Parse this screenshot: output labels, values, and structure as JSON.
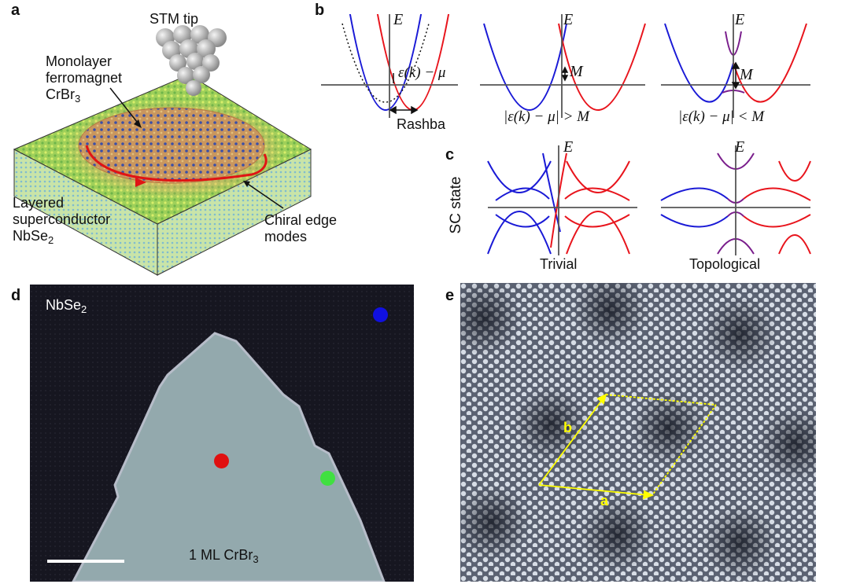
{
  "panels": {
    "a": {
      "letter": "a",
      "stm_tip": "STM tip",
      "monolayer": [
        "Monolayer",
        "ferromagnet",
        "CrBr",
        "3"
      ],
      "layered": [
        "Layered",
        "superconductor",
        "NbSe",
        "2"
      ],
      "chiral": [
        "Chiral edge",
        "modes"
      ]
    },
    "b": {
      "letter": "b",
      "E": "E",
      "eps_label": "ε(k) − μ",
      "rashba": "Rashba",
      "M": "M",
      "cond_gt": "|ε(k) − μ| > M",
      "cond_lt": "|ε(k) − μ| < M"
    },
    "c": {
      "letter": "c",
      "E": "E",
      "ylabel": "SC state",
      "trivial": "Trivial",
      "topological": "Topological"
    },
    "d": {
      "letter": "d",
      "nbse": "NbSe",
      "nbse_sub": "2",
      "crbr": "1 ML CrBr",
      "crbr_sub": "3",
      "dot_colors": {
        "blue": "#1010e0",
        "red": "#e01010",
        "green": "#40e040"
      }
    },
    "e": {
      "letter": "e",
      "a": "a",
      "b": "b"
    }
  },
  "colors": {
    "red": "#e8141c",
    "blue": "#1a1ad6",
    "purple": "#7a1e8c",
    "axis": "#555555",
    "yellow": "#ffff00"
  }
}
